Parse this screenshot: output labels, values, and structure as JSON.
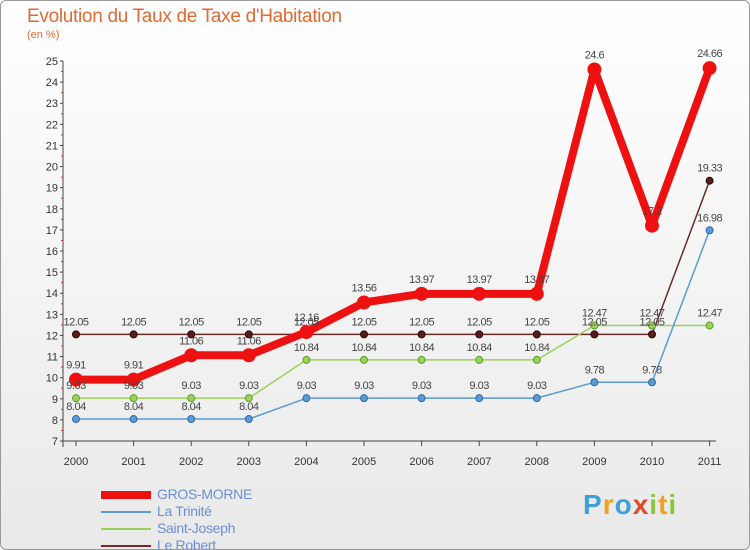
{
  "header": {
    "title": "Evolution du Taux de Taxe d'Habitation",
    "unit": "(en %)"
  },
  "logo": {
    "text": "Proxiti",
    "letters": [
      "P",
      "r",
      "o",
      "x",
      "i",
      "t",
      "i"
    ],
    "colors": [
      "#3fa0d8",
      "#f0a11e",
      "#3fa0d8",
      "#e04a2a",
      "#8cc63f",
      "#f0a11e",
      "#8cc63f"
    ]
  },
  "chart_data": {
    "type": "line",
    "title": "Evolution du Taux de Taxe d'Habitation",
    "ylabel": "(en %)",
    "xlabel": "",
    "x": [
      "2000",
      "2001",
      "2002",
      "2003",
      "2004",
      "2005",
      "2006",
      "2007",
      "2008",
      "2009",
      "2010",
      "2011"
    ],
    "ylim": [
      7,
      25
    ],
    "yticks": [
      "7",
      "8",
      "9",
      "10",
      "11",
      "12",
      "13",
      "14",
      "15",
      "16",
      "17",
      "18",
      "19",
      "20",
      "21",
      "22",
      "23",
      "24",
      "25"
    ],
    "grid": false,
    "legend": "bottom-left",
    "series": [
      {
        "name": "GROS-MORNE",
        "color": "#ee1111",
        "values": [
          9.91,
          9.91,
          11.06,
          11.06,
          12.16,
          13.56,
          13.97,
          13.97,
          13.97,
          24.6,
          17.2,
          24.66
        ],
        "labels": [
          "9.91",
          "9.91",
          "11.06",
          "11.06",
          "12.16",
          "13.56",
          "13.97",
          "13.97",
          "13.97",
          "24.6",
          "17.2",
          "24.66"
        ]
      },
      {
        "name": "La Trinité",
        "color": "#5b9bd5",
        "values": [
          8.04,
          8.04,
          8.04,
          8.04,
          9.03,
          9.03,
          9.03,
          9.03,
          9.03,
          9.78,
          9.78,
          16.98
        ],
        "labels": [
          "8.04",
          "8.04",
          "8.04",
          "8.04",
          "9.03",
          "9.03",
          "9.03",
          "9.03",
          "9.03",
          "9.78",
          "9.78",
          "16.98"
        ]
      },
      {
        "name": "Saint-Joseph",
        "color": "#9ad25a",
        "values": [
          9.03,
          9.03,
          9.03,
          9.03,
          10.84,
          10.84,
          10.84,
          10.84,
          10.84,
          12.47,
          12.47,
          12.47
        ],
        "labels": [
          "9.03",
          "9.03",
          "9.03",
          "9.03",
          "10.84",
          "10.84",
          "10.84",
          "10.84",
          "10.84",
          "12.47",
          "12.47",
          "12.47"
        ]
      },
      {
        "name": "Le Robert",
        "color": "#6e2a2a",
        "values": [
          12.05,
          12.05,
          12.05,
          12.05,
          12.05,
          12.05,
          12.05,
          12.05,
          12.05,
          12.05,
          12.05,
          19.33
        ],
        "labels": [
          "12.05",
          "12.05",
          "12.05",
          "12.05",
          "12.05",
          "12.05",
          "12.05",
          "12.05",
          "12.05",
          "12.05",
          "12.05",
          "19.33"
        ]
      }
    ]
  }
}
